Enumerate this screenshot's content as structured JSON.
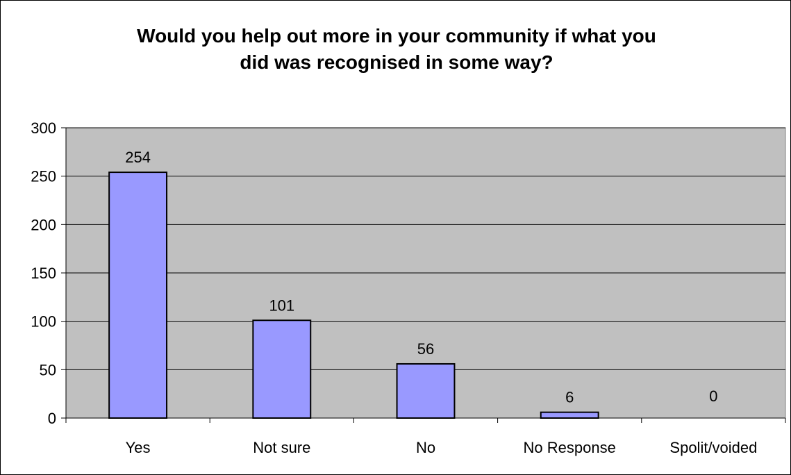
{
  "chart_data": {
    "type": "bar",
    "title_lines": [
      "Would you help out more in your community if what you",
      "did was recognised in some way?"
    ],
    "xlabel": "",
    "ylabel": "",
    "categories": [
      "Yes",
      "Not sure",
      "No",
      "No Response",
      "Spolit/voided"
    ],
    "values": [
      254,
      101,
      56,
      6,
      0
    ],
    "data_labels": [
      "254",
      "101",
      "56",
      "6",
      "0"
    ],
    "ylim": [
      0,
      300
    ],
    "yticks": [
      0,
      50,
      100,
      150,
      200,
      250,
      300
    ],
    "ytick_labels": [
      "0",
      "50",
      "100",
      "150",
      "200",
      "250",
      "300"
    ],
    "grid": true,
    "legend": "none",
    "colors": {
      "plot_background": "#c0c0c0",
      "bar_fill": "#9999ff",
      "bar_stroke": "#000000",
      "gridline": "#000000"
    }
  }
}
